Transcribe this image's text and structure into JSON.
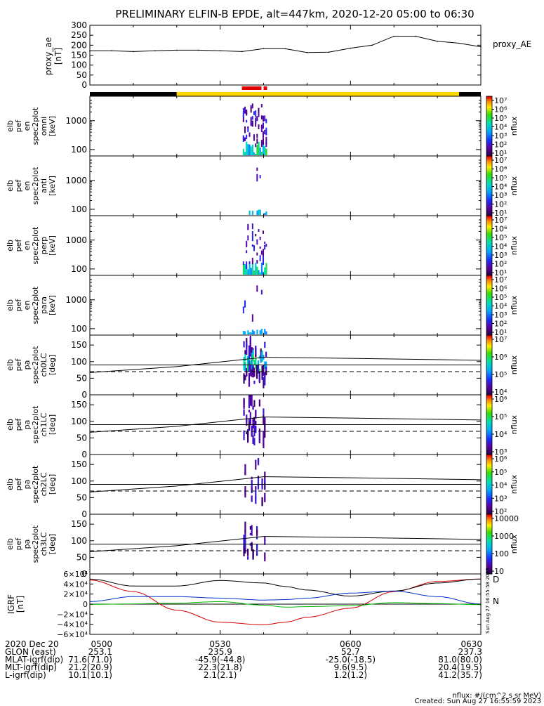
{
  "title": "PRELIMINARY ELFIN-B EPDE, alt=447km, 2020-12-20 05:00 to 06:30",
  "ae_panel": {
    "ylabel": [
      "proxy_ae",
      "[nT]"
    ],
    "yticks": [
      "300",
      "250",
      "200",
      "150",
      "100",
      "50",
      "0"
    ],
    "legend": "proxy_AE"
  },
  "energy_panels": [
    {
      "label": [
        "elb",
        "pef",
        "en",
        "spec2plot",
        "omni",
        "[keV]"
      ],
      "yticks": [
        "1000",
        "100"
      ]
    },
    {
      "label": [
        "elb",
        "pef",
        "en",
        "spec2plot",
        "anti",
        "[keV]"
      ],
      "yticks": [
        "1000",
        "100"
      ]
    },
    {
      "label": [
        "elb",
        "pef",
        "en",
        "spec2plot",
        "perp",
        "[keV]"
      ],
      "yticks": [
        "1000",
        "100"
      ]
    },
    {
      "label": [
        "elb",
        "pef",
        "en",
        "spec2plot",
        "para",
        "[keV]"
      ],
      "yticks": [
        "1000",
        "100"
      ]
    }
  ],
  "pa_panels": [
    {
      "label": [
        "elb",
        "pef",
        "pa",
        "spec2plot",
        "ch0LC",
        "[deg]"
      ],
      "yticks": [
        "150",
        "100",
        "50",
        "0"
      ]
    },
    {
      "label": [
        "elb",
        "pef",
        "pa",
        "spec2plot",
        "ch1LC",
        "[deg]"
      ],
      "yticks": [
        "150",
        "100",
        "50",
        "0"
      ]
    },
    {
      "label": [
        "elb",
        "pef",
        "pa",
        "spec2plot",
        "ch2LC",
        "[deg]"
      ],
      "yticks": [
        "150",
        "100",
        "50",
        "0"
      ]
    },
    {
      "label": [
        "elb",
        "pef",
        "pa",
        "spec2plot",
        "ch3LC",
        "[deg]"
      ],
      "yticks": [
        "150",
        "100",
        "50",
        "0"
      ]
    }
  ],
  "colorbars": [
    {
      "ticks": [
        "10⁷",
        "10⁶",
        "10⁵",
        "10⁴",
        "10³",
        "10²",
        "10¹"
      ],
      "unit": "nflux"
    },
    {
      "ticks": [
        "10⁷",
        "10⁶",
        "10⁵",
        "10⁴",
        "10³",
        "10²",
        "10¹"
      ],
      "unit": "nflux"
    },
    {
      "ticks": [
        "10⁷",
        "10⁶",
        "10⁵",
        "10⁴",
        "10³",
        "10²",
        "10¹"
      ],
      "unit": "nflux"
    },
    {
      "ticks": [
        "10⁷",
        "10⁶",
        "10⁵",
        "10⁴",
        "10³",
        "10²",
        "10¹"
      ],
      "unit": "nflux"
    },
    {
      "ticks": [
        "10⁷",
        "10⁶",
        "10⁵",
        "10⁴"
      ],
      "unit": "nflux"
    },
    {
      "ticks": [
        "10⁶",
        "10⁵",
        "10⁴",
        "10³"
      ],
      "unit": "nflux"
    },
    {
      "ticks": [
        "10⁶",
        "10⁵",
        "10⁴",
        "10³",
        "10²"
      ],
      "unit": "nflux"
    },
    {
      "ticks": [
        "10000",
        "1000",
        "100",
        "10"
      ],
      "unit": "nflux"
    }
  ],
  "igrf_panel": {
    "ylabel": [
      "IGRF",
      "[nT]"
    ],
    "yticks": [
      "6×10⁴",
      "4×10⁴",
      "2×10⁴",
      "0",
      "−2×10⁴",
      "−4×10⁴",
      "−6×10⁴"
    ],
    "legend_d": "D",
    "legend_n": "N",
    "stamp": "Sun Aug 27 16:55:58 2023"
  },
  "footer": {
    "rows": [
      {
        "label": "2020 Dec 20",
        "values": [
          "0500",
          "0530",
          "0600",
          "0630"
        ]
      },
      {
        "label": "GLON (east)",
        "values": [
          "253.1",
          "235.9",
          "52.7",
          "237.3"
        ]
      },
      {
        "label": "MLAT-igrf(dip)",
        "values": [
          "71.6(71.0)",
          "-45.9(-44.8)",
          "-25.0(-18.5)",
          "81.0(80.0)"
        ]
      },
      {
        "label": "MLT-igrf(dip)",
        "values": [
          "21.2(20.9)",
          "22.3(21.8)",
          "9.6(9.5)",
          "20.4(19.5)"
        ]
      },
      {
        "label": "L-igrf(dip)",
        "values": [
          "10.1(10.1)",
          "2.1(2.1)",
          "1.2(1.2)",
          "41.2(35.7)"
        ]
      }
    ],
    "unit_note": "nflux: #/(cm^2 s sr MeV)",
    "created": "Created: Sun Aug 27 16:55:59 2023"
  },
  "colors": {
    "ae_line": "#000000",
    "flag_black": "#000000",
    "flag_yellow": "#ffd700",
    "flag_red": "#e00000",
    "igrf_red": "#d40000",
    "igrf_blue": "#0033cc",
    "igrf_green": "#00bb00"
  },
  "chart_data": {
    "type": "line",
    "time_range": [
      "05:00",
      "06:30"
    ],
    "x_ticks": [
      "0500",
      "0530",
      "0600",
      "0630"
    ],
    "proxy_ae": {
      "name": "proxy_AE",
      "ylim": [
        0,
        300
      ],
      "t_min": [
        0,
        5,
        10,
        15,
        20,
        25,
        30,
        35,
        40,
        45,
        50,
        55,
        60,
        65,
        70,
        75,
        80,
        85,
        90
      ],
      "values": [
        172,
        172,
        168,
        172,
        175,
        175,
        172,
        168,
        183,
        182,
        163,
        165,
        185,
        200,
        245,
        245,
        220,
        210,
        192
      ]
    },
    "energy_ylim_keV": [
      60,
      7000
    ],
    "pa_ylim_deg": [
      0,
      180
    ],
    "pa_reference_lines_deg": {
      "solid": 90,
      "dashed": 70
    },
    "igrf": {
      "ylim": [
        -60000,
        60000
      ],
      "t_min": [
        0,
        10,
        20,
        30,
        40,
        45,
        50,
        60,
        70,
        80,
        90
      ],
      "series": [
        {
          "color": "red",
          "values": [
            48000,
            25000,
            -12000,
            -36000,
            -41000,
            -36000,
            -26000,
            -8000,
            25000,
            45000,
            50000
          ]
        },
        {
          "color": "black",
          "values": [
            50000,
            36000,
            36000,
            47000,
            42000,
            35000,
            28000,
            16000,
            26000,
            42000,
            50000
          ]
        },
        {
          "color": "blue",
          "values": [
            5000,
            15000,
            15000,
            12000,
            8000,
            9000,
            12000,
            22000,
            26000,
            15000,
            0
          ]
        },
        {
          "color": "green",
          "values": [
            -500,
            500,
            2000,
            5000,
            -2000,
            -6000,
            -5000,
            -3000,
            3000,
            1000,
            -1000
          ]
        }
      ]
    }
  }
}
